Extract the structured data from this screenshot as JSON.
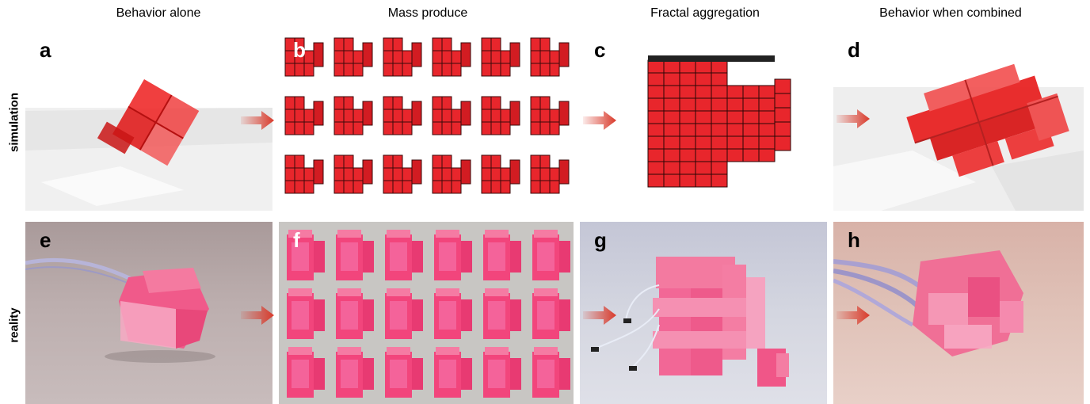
{
  "columns": {
    "col1": "Behavior alone",
    "col2": "Mass produce",
    "col3": "Fractal aggregation",
    "col4": "Behavior when combined"
  },
  "rows": {
    "row1": "simulation",
    "row2": "reality"
  },
  "panels": {
    "a": "a",
    "b": "b",
    "c": "c",
    "d": "d",
    "e": "e",
    "f": "f",
    "g": "g",
    "h": "h"
  },
  "colors": {
    "robot_red": "#e8262c",
    "robot_pink": "#f0487a",
    "arrow_red": "#d93a2b",
    "sim_background": "#f2f2f2"
  }
}
